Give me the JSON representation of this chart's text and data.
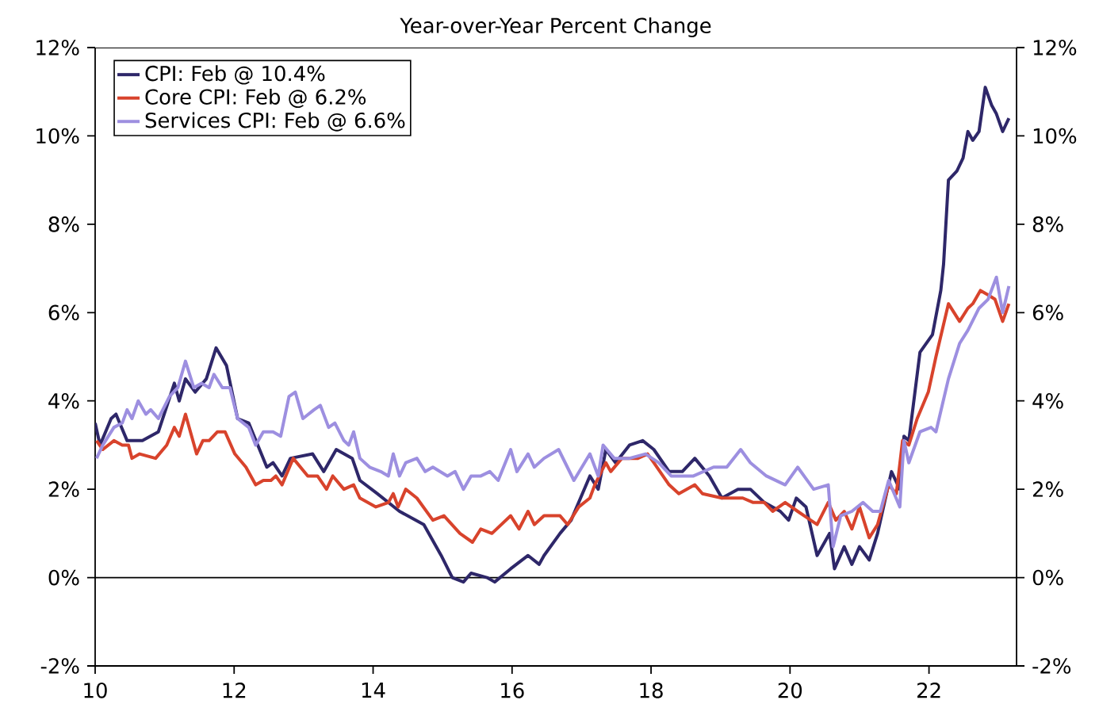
{
  "chart_data": {
    "type": "line",
    "title": "Year-over-Year Percent Change",
    "xlim": [
      10,
      23.26
    ],
    "xticks": [
      10,
      12,
      14,
      16,
      18,
      20,
      22
    ],
    "ylim": [
      -2,
      12
    ],
    "yticks": [
      {
        "value": -2,
        "label": "-2%"
      },
      {
        "value": 0,
        "label": "0%"
      },
      {
        "value": 2,
        "label": "2%"
      },
      {
        "value": 4,
        "label": "4%"
      },
      {
        "value": 6,
        "label": "6%"
      },
      {
        "value": 8,
        "label": "8%"
      },
      {
        "value": 10,
        "label": "10%"
      },
      {
        "value": 12,
        "label": "12%"
      }
    ],
    "y2lim": [
      -2,
      12
    ],
    "y2ticks": [
      {
        "value": -2,
        "label": "-2%"
      },
      {
        "value": 0,
        "label": "0%"
      },
      {
        "value": 2,
        "label": "2%"
      },
      {
        "value": 4,
        "label": "4%"
      },
      {
        "value": 6,
        "label": "6%"
      },
      {
        "value": 8,
        "label": "8%"
      },
      {
        "value": 10,
        "label": "10%"
      },
      {
        "value": 12,
        "label": "12%"
      }
    ],
    "legend": "top left",
    "marker": "none",
    "line_style": "solid",
    "ref_lines": [
      {
        "axis": "y",
        "value": 0,
        "color": "#000000"
      }
    ],
    "series": [
      {
        "name": "CPI: Feb @ 10.4%",
        "color": "#2e2769",
        "x": [
          10.0,
          10.07,
          10.23,
          10.3,
          10.46,
          10.68,
          10.91,
          11.14,
          11.21,
          11.3,
          11.44,
          11.6,
          11.74,
          11.89,
          12.05,
          12.21,
          12.47,
          12.56,
          12.69,
          12.81,
          13.13,
          13.29,
          13.47,
          13.7,
          13.81,
          14.06,
          14.38,
          14.73,
          14.98,
          15.14,
          15.3,
          15.41,
          15.64,
          15.75,
          15.98,
          16.23,
          16.39,
          16.46,
          16.69,
          16.85,
          17.12,
          17.24,
          17.35,
          17.49,
          17.69,
          17.88,
          18.04,
          18.26,
          18.45,
          18.63,
          18.84,
          19.02,
          19.25,
          19.43,
          19.63,
          19.86,
          19.98,
          20.09,
          20.23,
          20.39,
          20.57,
          20.64,
          20.78,
          20.89,
          21.0,
          21.14,
          21.26,
          21.46,
          21.58,
          21.64,
          21.71,
          21.87,
          22.05,
          22.17,
          22.21,
          22.28,
          22.4,
          22.49,
          22.56,
          22.63,
          22.72,
          22.81,
          22.9,
          22.97,
          23.06,
          23.15
        ],
        "values": [
          3.5,
          3.0,
          3.6,
          3.7,
          3.1,
          3.1,
          3.3,
          4.4,
          4.0,
          4.5,
          4.2,
          4.5,
          5.2,
          4.8,
          3.6,
          3.5,
          2.5,
          2.6,
          2.3,
          2.7,
          2.8,
          2.4,
          2.9,
          2.7,
          2.2,
          1.9,
          1.5,
          1.2,
          0.5,
          0.0,
          -0.1,
          0.1,
          0.0,
          -0.1,
          0.2,
          0.5,
          0.3,
          0.5,
          1.0,
          1.3,
          2.3,
          2.0,
          2.9,
          2.6,
          3.0,
          3.1,
          2.9,
          2.4,
          2.4,
          2.7,
          2.3,
          1.8,
          2.0,
          2.0,
          1.7,
          1.5,
          1.3,
          1.8,
          1.6,
          0.5,
          1.0,
          0.2,
          0.7,
          0.3,
          0.7,
          0.4,
          1.0,
          2.4,
          2.0,
          3.2,
          3.1,
          5.1,
          5.5,
          6.5,
          7.1,
          9.0,
          9.2,
          9.5,
          10.1,
          9.9,
          10.1,
          11.1,
          10.7,
          10.5,
          10.1,
          10.4
        ]
      },
      {
        "name": "Core CPI: Feb @ 6.2%",
        "color": "#d8432c",
        "x": [
          10.02,
          10.11,
          10.27,
          10.39,
          10.48,
          10.53,
          10.64,
          10.87,
          11.03,
          11.14,
          11.21,
          11.3,
          11.46,
          11.55,
          11.64,
          11.76,
          11.87,
          12.01,
          12.17,
          12.31,
          12.42,
          12.53,
          12.6,
          12.69,
          12.85,
          13.06,
          13.2,
          13.33,
          13.42,
          13.58,
          13.72,
          13.81,
          14.04,
          14.22,
          14.29,
          14.36,
          14.47,
          14.63,
          14.86,
          15.02,
          15.25,
          15.43,
          15.55,
          15.71,
          15.98,
          16.1,
          16.23,
          16.32,
          16.46,
          16.69,
          16.8,
          16.96,
          17.12,
          17.19,
          17.35,
          17.42,
          17.58,
          17.81,
          17.95,
          18.04,
          18.26,
          18.4,
          18.63,
          18.74,
          19.02,
          19.32,
          19.47,
          19.63,
          19.75,
          19.93,
          20.11,
          20.39,
          20.55,
          20.66,
          20.78,
          20.89,
          21.0,
          21.14,
          21.26,
          21.42,
          21.53,
          21.62,
          21.71,
          21.83,
          21.99,
          22.1,
          22.28,
          22.44,
          22.56,
          22.63,
          22.74,
          22.85,
          22.95,
          23.06,
          23.15
        ],
        "values": [
          3.1,
          2.9,
          3.1,
          3.0,
          3.0,
          2.7,
          2.8,
          2.7,
          3.0,
          3.4,
          3.2,
          3.7,
          2.8,
          3.1,
          3.1,
          3.3,
          3.3,
          2.8,
          2.5,
          2.1,
          2.2,
          2.2,
          2.3,
          2.1,
          2.7,
          2.3,
          2.3,
          2.0,
          2.3,
          2.0,
          2.1,
          1.8,
          1.6,
          1.7,
          1.9,
          1.6,
          2.0,
          1.8,
          1.3,
          1.4,
          1.0,
          0.8,
          1.1,
          1.0,
          1.4,
          1.1,
          1.5,
          1.2,
          1.4,
          1.4,
          1.2,
          1.6,
          1.8,
          2.1,
          2.6,
          2.4,
          2.7,
          2.7,
          2.8,
          2.6,
          2.1,
          1.9,
          2.1,
          1.9,
          1.8,
          1.8,
          1.7,
          1.7,
          1.5,
          1.7,
          1.5,
          1.2,
          1.7,
          1.3,
          1.5,
          1.1,
          1.6,
          0.9,
          1.2,
          2.1,
          1.9,
          3.1,
          3.0,
          3.6,
          4.2,
          5.0,
          6.2,
          5.8,
          6.1,
          6.2,
          6.5,
          6.4,
          6.3,
          5.8,
          6.2
        ]
      },
      {
        "name": "Services CPI: Feb @ 6.6%",
        "color": "#9d8fe0",
        "x": [
          10.02,
          10.11,
          10.27,
          10.39,
          10.46,
          10.53,
          10.62,
          10.73,
          10.8,
          10.91,
          11.07,
          11.19,
          11.3,
          11.42,
          11.53,
          11.64,
          11.71,
          11.83,
          11.94,
          12.05,
          12.21,
          12.31,
          12.42,
          12.56,
          12.67,
          12.79,
          12.88,
          12.99,
          13.15,
          13.24,
          13.36,
          13.45,
          13.58,
          13.65,
          13.72,
          13.81,
          13.95,
          14.11,
          14.22,
          14.29,
          14.38,
          14.47,
          14.63,
          14.75,
          14.86,
          15.07,
          15.18,
          15.3,
          15.41,
          15.55,
          15.68,
          15.8,
          15.98,
          16.07,
          16.23,
          16.32,
          16.46,
          16.67,
          16.89,
          17.12,
          17.24,
          17.31,
          17.47,
          17.69,
          17.92,
          18.11,
          18.29,
          18.4,
          18.61,
          18.9,
          19.09,
          19.29,
          19.43,
          19.66,
          19.93,
          20.11,
          20.34,
          20.55,
          20.62,
          20.73,
          20.89,
          21.05,
          21.19,
          21.3,
          21.42,
          21.58,
          21.64,
          21.71,
          21.87,
          22.03,
          22.1,
          22.28,
          22.44,
          22.56,
          22.72,
          22.85,
          22.97,
          23.06,
          23.15
        ],
        "values": [
          2.7,
          3.0,
          3.4,
          3.5,
          3.8,
          3.6,
          4.0,
          3.7,
          3.8,
          3.6,
          4.1,
          4.3,
          4.9,
          4.3,
          4.4,
          4.3,
          4.6,
          4.3,
          4.3,
          3.6,
          3.4,
          3.0,
          3.3,
          3.3,
          3.2,
          4.1,
          4.2,
          3.6,
          3.8,
          3.9,
          3.4,
          3.5,
          3.1,
          3.0,
          3.3,
          2.7,
          2.5,
          2.4,
          2.3,
          2.8,
          2.3,
          2.6,
          2.7,
          2.4,
          2.5,
          2.3,
          2.4,
          2.0,
          2.3,
          2.3,
          2.4,
          2.2,
          2.9,
          2.4,
          2.8,
          2.5,
          2.7,
          2.9,
          2.2,
          2.8,
          2.3,
          3.0,
          2.7,
          2.7,
          2.8,
          2.6,
          2.3,
          2.3,
          2.3,
          2.5,
          2.5,
          2.9,
          2.6,
          2.3,
          2.1,
          2.5,
          2.0,
          2.1,
          0.7,
          1.4,
          1.5,
          1.7,
          1.5,
          1.5,
          2.2,
          1.6,
          3.1,
          2.6,
          3.3,
          3.4,
          3.3,
          4.5,
          5.3,
          5.6,
          6.1,
          6.3,
          6.8,
          6.0,
          6.6
        ]
      }
    ]
  }
}
